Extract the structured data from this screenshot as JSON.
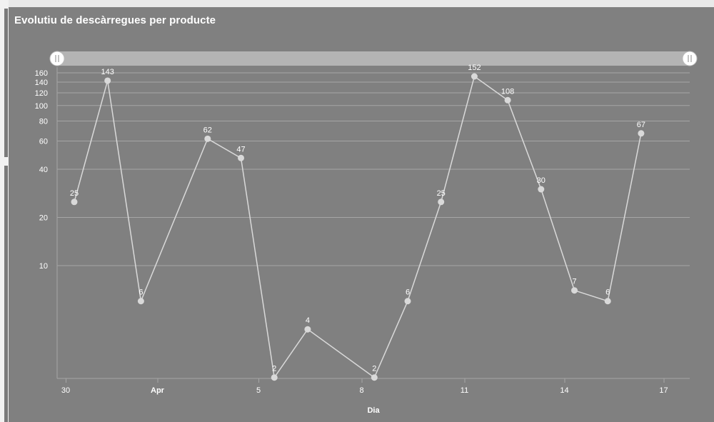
{
  "panel": {
    "title": "Evolutiu de descàrregues per producte"
  },
  "colors": {
    "panel_bg": "#808080",
    "line": "#d9d9d9",
    "grid": "#a6a6a6",
    "navigator_bar": "#b4b4b4",
    "text": "#ffffff"
  },
  "chart_data": {
    "type": "line",
    "title": "",
    "xlabel": "Dia",
    "ylabel": "",
    "yscale": "log",
    "grid": true,
    "navigator": true,
    "x_tick_labels": [
      "30",
      "Apr",
      "5",
      "8",
      "11",
      "14",
      "17"
    ],
    "y_tick_labels": [
      "10",
      "20",
      "40",
      "60",
      "80",
      "100",
      "120",
      "140",
      "160"
    ],
    "series": [
      {
        "x": [
          "2017-03-31",
          "2017-04-01",
          "2017-04-02",
          "2017-04-03",
          "2017-04-04",
          "2017-04-05",
          "2017-04-06",
          "2017-04-07",
          "2017-04-08",
          "2017-04-09",
          "2017-04-10",
          "2017-04-11",
          "2017-04-12",
          "2017-04-13",
          "2017-04-14",
          "2017-04-15",
          "2017-04-16",
          "2017-04-17"
        ],
        "values": [
          25,
          143,
          6,
          null,
          62,
          47,
          2,
          4,
          null,
          2,
          6,
          25,
          152,
          108,
          30,
          7,
          6,
          67
        ],
        "labels": [
          "25",
          "143",
          "6",
          "",
          "62",
          "47",
          "2",
          "4",
          "",
          "2",
          "6",
          "25",
          "152",
          "108",
          "30",
          "7",
          "6",
          "67"
        ]
      }
    ]
  }
}
